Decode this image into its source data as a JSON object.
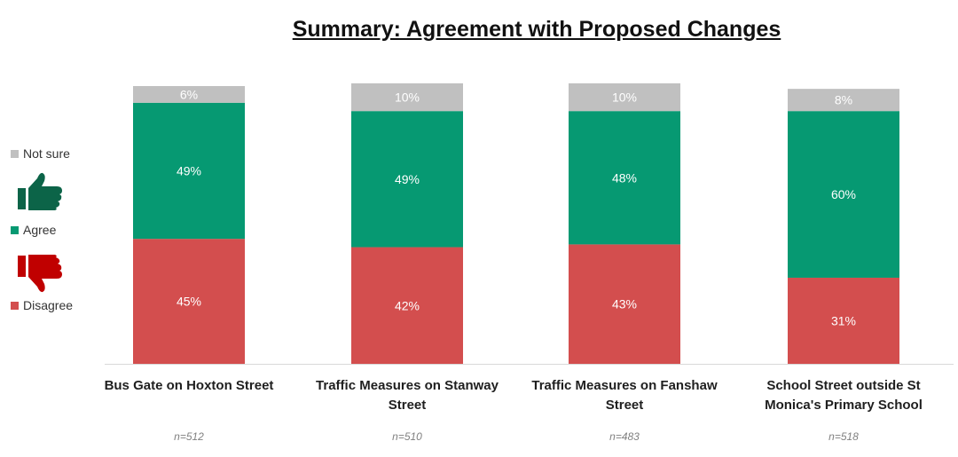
{
  "title": "Summary: Agreement with Proposed Changes",
  "legend": [
    {
      "key": "not_sure",
      "label": "Not sure"
    },
    {
      "key": "agree",
      "label": "Agree"
    },
    {
      "key": "disagree",
      "label": "Disagree"
    }
  ],
  "icons": {
    "agree": "thumbs-up-icon",
    "disagree": "thumbs-down-icon"
  },
  "colors": {
    "disagree": "#D34E4E",
    "agree": "#069972",
    "not_sure": "#C0C0C0",
    "thumbs_up": "#0C6448",
    "thumbs_down": "#C00000"
  },
  "sample_sizes": [
    "n=512",
    "n=510",
    "n=483",
    "n=518"
  ],
  "chart_data": {
    "type": "bar",
    "stacked": true,
    "categories": [
      "Bus Gate on Hoxton Street",
      "Traffic Measures on Stanway Street",
      "Traffic Measures on Fanshaw Street",
      "School Street outside St Monica's Primary School"
    ],
    "series": [
      {
        "name": "Disagree",
        "values": [
          45,
          42,
          43,
          31
        ],
        "labels": [
          "45%",
          "42%",
          "43%",
          "31%"
        ]
      },
      {
        "name": "Agree",
        "values": [
          49,
          49,
          48,
          60
        ],
        "labels": [
          "49%",
          "49%",
          "48%",
          "60%"
        ]
      },
      {
        "name": "Not sure",
        "values": [
          6,
          10,
          10,
          8
        ],
        "labels": [
          "6%",
          "10%",
          "10%",
          "8%"
        ]
      }
    ],
    "ylim": [
      0,
      100
    ],
    "grid": false,
    "legend_position": "left"
  }
}
